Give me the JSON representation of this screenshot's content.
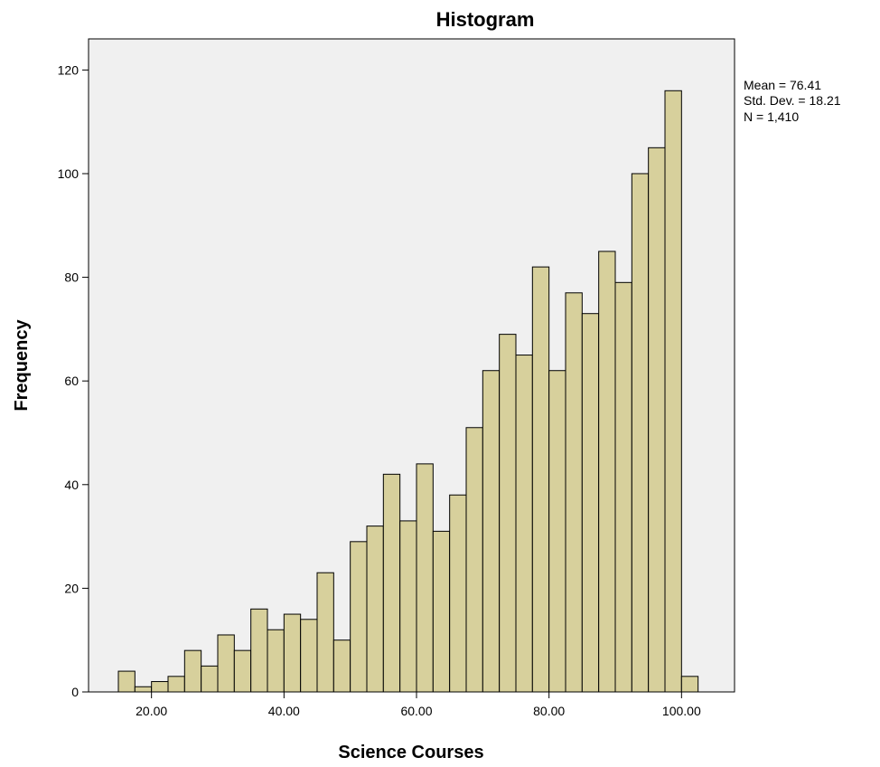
{
  "chart_data": {
    "type": "bar",
    "title": "Histogram",
    "xlabel": "Science Courses",
    "ylabel": "Frequency",
    "bin_width": 2.5,
    "bins": [
      {
        "x_start": 15.0,
        "count": 4
      },
      {
        "x_start": 17.5,
        "count": 1
      },
      {
        "x_start": 20.0,
        "count": 2
      },
      {
        "x_start": 22.5,
        "count": 3
      },
      {
        "x_start": 25.0,
        "count": 8
      },
      {
        "x_start": 27.5,
        "count": 5
      },
      {
        "x_start": 30.0,
        "count": 11
      },
      {
        "x_start": 32.5,
        "count": 8
      },
      {
        "x_start": 35.0,
        "count": 16
      },
      {
        "x_start": 37.5,
        "count": 12
      },
      {
        "x_start": 40.0,
        "count": 15
      },
      {
        "x_start": 42.5,
        "count": 14
      },
      {
        "x_start": 45.0,
        "count": 23
      },
      {
        "x_start": 47.5,
        "count": 10
      },
      {
        "x_start": 50.0,
        "count": 29
      },
      {
        "x_start": 52.5,
        "count": 32
      },
      {
        "x_start": 55.0,
        "count": 42
      },
      {
        "x_start": 57.5,
        "count": 33
      },
      {
        "x_start": 60.0,
        "count": 44
      },
      {
        "x_start": 62.5,
        "count": 31
      },
      {
        "x_start": 65.0,
        "count": 38
      },
      {
        "x_start": 67.5,
        "count": 51
      },
      {
        "x_start": 70.0,
        "count": 62
      },
      {
        "x_start": 72.5,
        "count": 69
      },
      {
        "x_start": 75.0,
        "count": 65
      },
      {
        "x_start": 77.5,
        "count": 82
      },
      {
        "x_start": 80.0,
        "count": 62
      },
      {
        "x_start": 82.5,
        "count": 77
      },
      {
        "x_start": 85.0,
        "count": 73
      },
      {
        "x_start": 87.5,
        "count": 85
      },
      {
        "x_start": 90.0,
        "count": 79
      },
      {
        "x_start": 92.5,
        "count": 100
      },
      {
        "x_start": 95.0,
        "count": 105
      },
      {
        "x_start": 97.5,
        "count": 116
      },
      {
        "x_start": 100.0,
        "count": 3
      }
    ],
    "xlim": [
      10.5,
      108
    ],
    "ylim": [
      0,
      126
    ],
    "xticks": [
      {
        "value": 20,
        "label": "20.00"
      },
      {
        "value": 40,
        "label": "40.00"
      },
      {
        "value": 60,
        "label": "60.00"
      },
      {
        "value": 80,
        "label": "80.00"
      },
      {
        "value": 100,
        "label": "100.00"
      }
    ],
    "yticks": [
      {
        "value": 0,
        "label": "0"
      },
      {
        "value": 20,
        "label": "20"
      },
      {
        "value": 40,
        "label": "40"
      },
      {
        "value": 60,
        "label": "60"
      },
      {
        "value": 80,
        "label": "80"
      },
      {
        "value": 100,
        "label": "100"
      },
      {
        "value": 120,
        "label": "120"
      }
    ],
    "stats": [
      "Mean = 76.41",
      "Std. Dev. = 18.21",
      "N = 1,410"
    ],
    "grid": false,
    "legend": "none",
    "colors": {
      "bar_fill": "#d7d09c",
      "bar_stroke": "#000000",
      "plot_background": "#f0f0f0",
      "frame": "#000000"
    }
  }
}
